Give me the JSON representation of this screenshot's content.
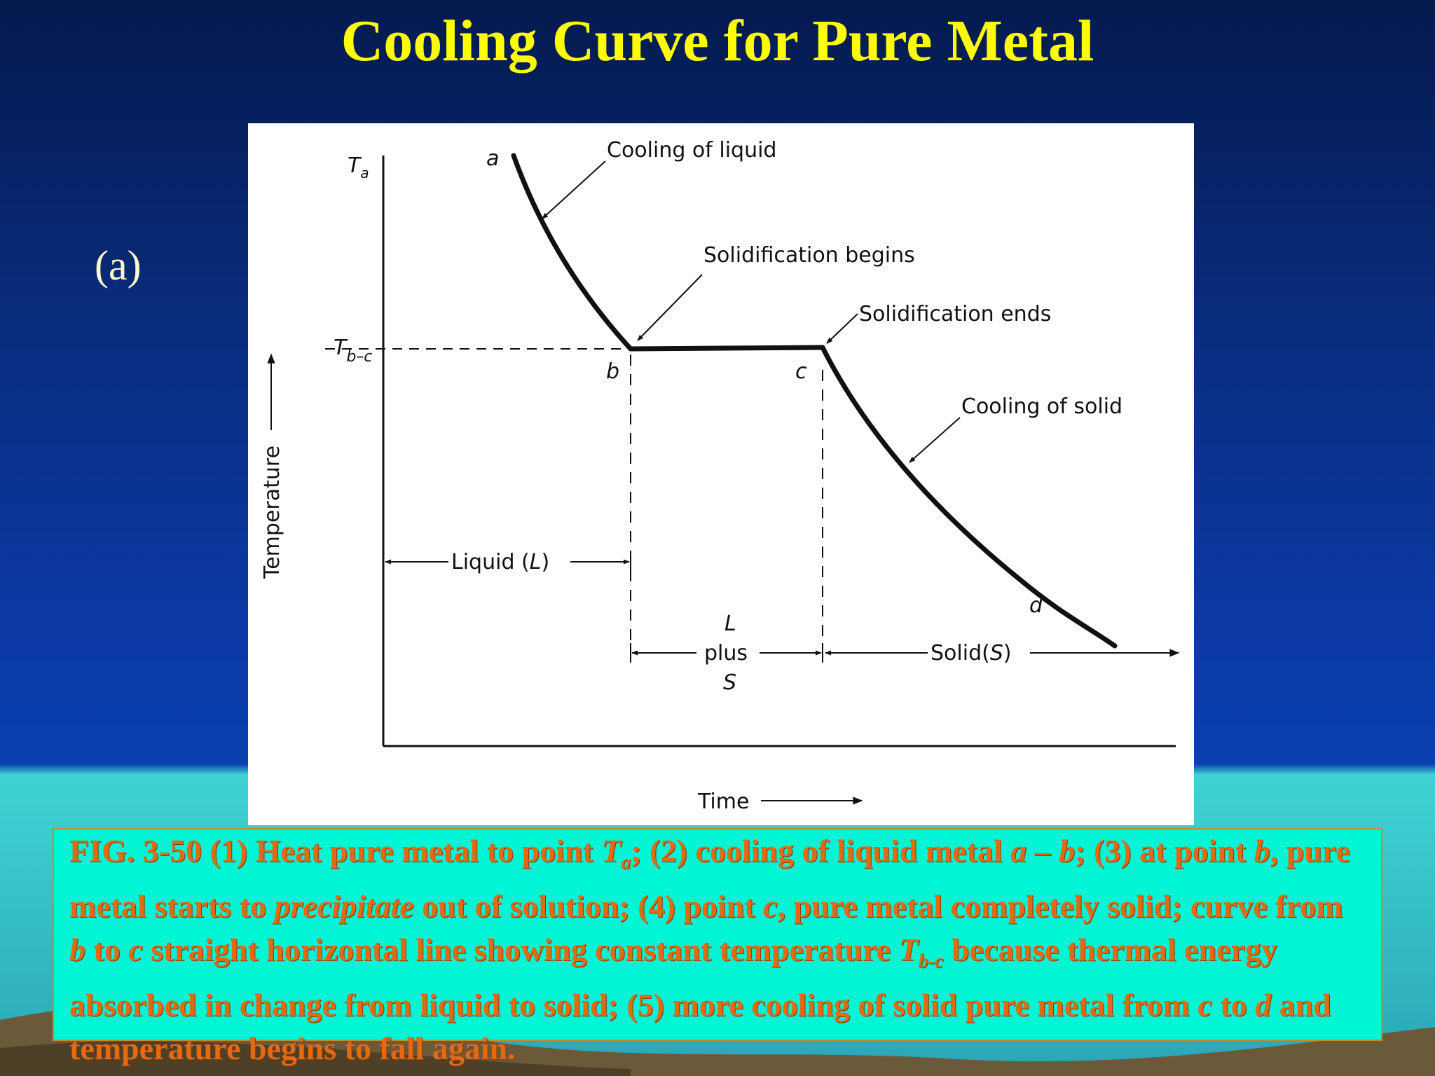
{
  "slide": {
    "title": "Cooling Curve for Pure Metal",
    "part_label": "(a)"
  },
  "diagram": {
    "y_axis_label": "Temperature",
    "x_axis_label": "Time",
    "tick_top": "T",
    "tick_top_sub": "a",
    "tick_plateau": "T",
    "tick_plateau_sub": "b–c",
    "points": {
      "a": "a",
      "b": "b",
      "c": "c",
      "d": "d"
    },
    "annotations": {
      "cooling_liquid": "Cooling of liquid",
      "solid_begins": "Solidification begins",
      "solid_ends": "Solidification ends",
      "cooling_solid": "Cooling of solid"
    },
    "regions": {
      "liquid_text": "Liquid (",
      "liquid_sym": "L",
      "liquid_close": ")",
      "mix_top": "L",
      "mix_mid": "plus",
      "mix_bot": "S",
      "solid_text": "Solid(",
      "solid_sym": "S",
      "solid_close": ")"
    }
  },
  "caption": {
    "p1": "FIG. 3-50 (1) Heat pure metal to point ",
    "p1_T": "T",
    "p1_sub": "a",
    "p2": "; (2) cooling of liquid metal ",
    "p2_ab": "a – b",
    "p3": "; (3) at point ",
    "p3_b": "b",
    "p4": ", pure metal starts to ",
    "p4_precip": "precipitate",
    "p5": " out of solution; (4) point ",
    "p5_c": "c",
    "p6": ", pure metal completely solid; curve from ",
    "p6_b": "b",
    "p7": " to ",
    "p7_c": "c",
    "p8": " straight horizontal line showing constant temperature ",
    "p8_T": "T",
    "p8_sub": "b-c",
    "p9": " because thermal energy absorbed in change from liquid to solid; (5) more cooling of solid pure metal from ",
    "p9_c": "c",
    "p10": " to ",
    "p10_d": "d",
    "p11": "  and temperature begins to fall again."
  }
}
